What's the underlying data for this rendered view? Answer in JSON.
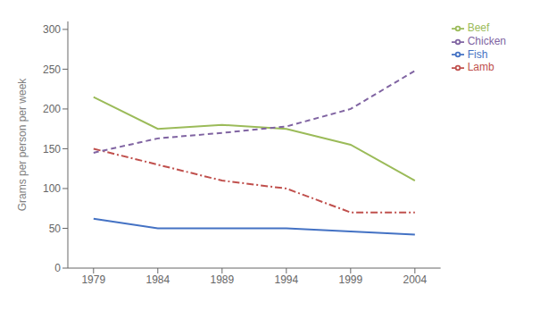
{
  "chart_data": {
    "type": "line",
    "ylabel": "Grams per person per week",
    "x": [
      1979,
      1984,
      1989,
      1994,
      1999,
      2004
    ],
    "xlim": [
      1977,
      2006
    ],
    "xticks": [
      1979,
      1984,
      1989,
      1994,
      1999,
      2004
    ],
    "ylim": [
      0,
      310
    ],
    "yticks": [
      0,
      50,
      100,
      150,
      200,
      250,
      300
    ],
    "grid": false,
    "legend": "upper right",
    "series": [
      {
        "name": "Fish",
        "color": "#4472C4",
        "line_style": "solid",
        "values": [
          62,
          50,
          50,
          50,
          46,
          42
        ]
      },
      {
        "name": "Lamb",
        "color": "#C0504D",
        "line_style": "dashdot",
        "values": [
          150,
          130,
          110,
          100,
          70,
          70
        ]
      },
      {
        "name": "Beef",
        "color": "#9BBB59",
        "line_style": "solid",
        "values": [
          215,
          175,
          180,
          175,
          155,
          110
        ]
      },
      {
        "name": "Chicken",
        "color": "#8064A2",
        "line_style": "dashed",
        "values": [
          145,
          163,
          170,
          178,
          200,
          248
        ]
      }
    ]
  }
}
